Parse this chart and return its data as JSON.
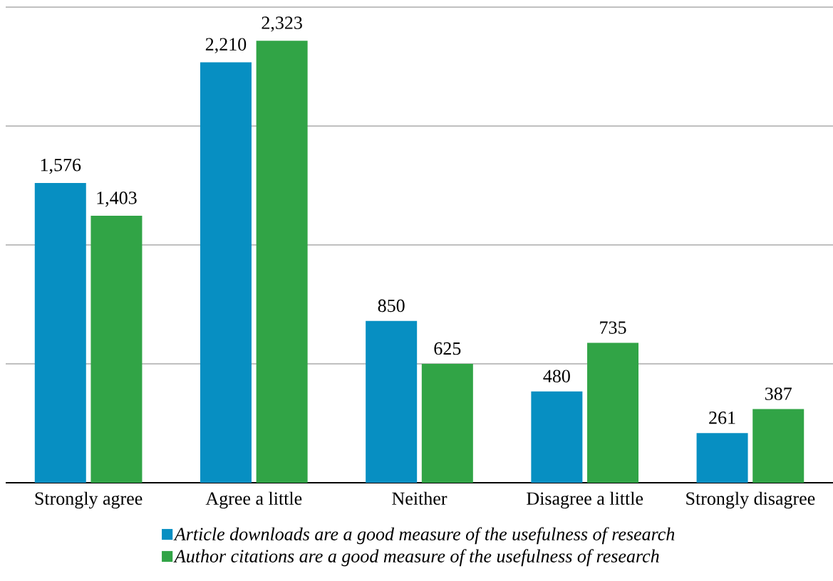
{
  "chart_data": {
    "type": "bar",
    "categories": [
      "Strongly agree",
      "Agree a little",
      "Neither",
      "Disagree a little",
      "Strongly disagree"
    ],
    "series": [
      {
        "name": "*Article downloads are a good measure of the usefulness of research*",
        "color": "#078fc2",
        "values": [
          1576,
          2210,
          850,
          480,
          261
        ],
        "value_labels": [
          "1,576",
          "2,210",
          "850",
          "480",
          "261"
        ]
      },
      {
        "name": "*Author citations are a good measure of the usefulness of research*",
        "color": "#31a446",
        "values": [
          1403,
          2323,
          625,
          735,
          387
        ],
        "value_labels": [
          "1,403",
          "2,323",
          "625",
          "735",
          "387"
        ]
      }
    ],
    "ylim": [
      0,
      2500
    ],
    "yticks": [
      {
        "value": 0,
        "label": null
      },
      {
        "value": 625,
        "label": null
      },
      {
        "value": 1250,
        "label": null
      },
      {
        "value": 1875,
        "label": null
      },
      {
        "value": 2500,
        "label": null
      }
    ],
    "tick_labels": "x",
    "grid": "y",
    "legend": "bottom"
  }
}
